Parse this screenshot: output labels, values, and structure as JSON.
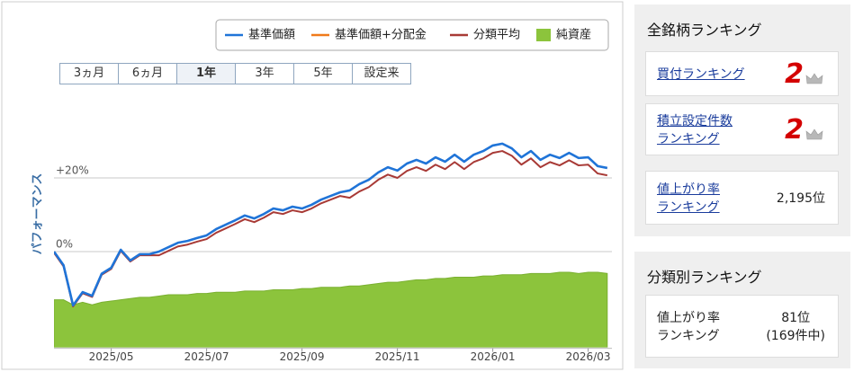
{
  "chart_data": {
    "type": "line",
    "y_axis_label": "パフォーマンス",
    "periods": [
      {
        "label": "3ヵ月"
      },
      {
        "label": "6ヵ月"
      },
      {
        "label": "1年",
        "selected": true
      },
      {
        "label": "3年"
      },
      {
        "label": "5年"
      },
      {
        "label": "設定来"
      }
    ],
    "categories": [
      null,
      null,
      null,
      null,
      null,
      null,
      "2025/05",
      null,
      null,
      null,
      null,
      null,
      null,
      null,
      null,
      null,
      "2025/07",
      null,
      null,
      null,
      null,
      null,
      null,
      null,
      null,
      null,
      "2025/09",
      null,
      null,
      null,
      null,
      null,
      null,
      null,
      null,
      null,
      "2025/11",
      null,
      null,
      null,
      null,
      null,
      null,
      null,
      null,
      null,
      "2026/01",
      null,
      null,
      null,
      null,
      null,
      null,
      null,
      null,
      null,
      "2026/03",
      null,
      null
    ],
    "ylim": [
      -26,
      42
    ],
    "yticks": [
      {
        "value": 20,
        "label": "+20%"
      },
      {
        "value": 0,
        "label": "0%"
      }
    ],
    "y2lim": [
      0,
      100
    ],
    "grid": true,
    "series": [
      {
        "name": "基準価額",
        "color": "#1f74d8",
        "type": "line",
        "values": [
          0,
          -3.7,
          -14.6,
          -11,
          -12,
          -6,
          -4.4,
          0.5,
          -2.4,
          -0.7,
          -0.7,
          0,
          1.2,
          2.4,
          2.9,
          3.7,
          4.4,
          6.1,
          7.3,
          8.5,
          9.8,
          9,
          10.2,
          11.7,
          11.2,
          12.2,
          11.7,
          12.7,
          14.1,
          15.1,
          16.1,
          16.6,
          18.3,
          19.5,
          21.5,
          22.9,
          22,
          23.9,
          24.9,
          23.9,
          25.6,
          24.4,
          26.3,
          24.4,
          26.3,
          27.3,
          28.8,
          29.3,
          28,
          25.6,
          27.3,
          24.9,
          26.3,
          25.4,
          26.8,
          25.4,
          25.6,
          23.2,
          22.7
        ]
      },
      {
        "name": "基準価額+分配金",
        "color": "#f07a1a",
        "type": "line",
        "values": [
          0,
          -3.7,
          -14.6,
          -11,
          -12,
          -6,
          -4.4,
          0.5,
          -2.4,
          -0.7,
          -0.7,
          0,
          1.2,
          2.4,
          2.9,
          3.7,
          4.4,
          6.1,
          7.3,
          8.5,
          9.8,
          9,
          10.2,
          11.7,
          11.2,
          12.2,
          11.7,
          12.7,
          14.1,
          15.1,
          16.1,
          16.6,
          18.3,
          19.5,
          21.5,
          22.9,
          22,
          23.9,
          24.9,
          23.9,
          25.6,
          24.4,
          26.3,
          24.4,
          26.3,
          27.3,
          28.8,
          29.3,
          28,
          25.6,
          27.3,
          24.9,
          26.3,
          25.4,
          26.8,
          25.4,
          25.6,
          23.2,
          22.7
        ]
      },
      {
        "name": "分類平均",
        "color": "#a83a36",
        "type": "line",
        "values": [
          -0.3,
          -4,
          -14.9,
          -11.3,
          -12.3,
          -6.3,
          -4.7,
          0.2,
          -2.7,
          -1,
          -1,
          -1,
          0.2,
          1.4,
          1.9,
          2.7,
          3.4,
          5.1,
          6.3,
          7.5,
          8.8,
          8,
          9.2,
          10.7,
          10.2,
          11.2,
          10.7,
          11.7,
          13.1,
          14.1,
          15.1,
          14.6,
          16.3,
          17.5,
          19.5,
          20.9,
          20,
          21.9,
          22.9,
          21.9,
          23.6,
          22.4,
          24.3,
          22.4,
          24.3,
          25.3,
          26.8,
          27.3,
          26,
          23.6,
          25.3,
          22.9,
          24.3,
          23.4,
          24.8,
          23.4,
          23.6,
          21.2,
          20.7
        ]
      },
      {
        "name": "純資産",
        "color": "#8cc43c",
        "type": "area",
        "axis": "y2",
        "values": [
          19,
          19,
          17,
          18,
          17,
          18,
          18.5,
          19,
          19.5,
          20,
          20,
          20.5,
          21,
          21,
          21,
          21.5,
          21.5,
          22,
          22,
          22,
          22.5,
          22.5,
          22.5,
          23,
          23,
          23,
          23.5,
          23.5,
          24,
          24,
          24,
          24.5,
          24.5,
          25,
          25.5,
          26,
          26,
          26.5,
          27,
          27,
          27.5,
          27.5,
          28,
          28,
          28,
          28.5,
          28.5,
          29,
          29,
          29,
          29.5,
          29.5,
          29.5,
          30,
          30,
          29.5,
          30,
          30,
          29.5
        ]
      }
    ]
  },
  "sidebar": {
    "overall": {
      "title": "全銘柄ランキング",
      "items": [
        {
          "label": [
            "買付ランキング"
          ],
          "rank": "2",
          "crown": true,
          "link": true
        },
        {
          "label": [
            "積立設定件数",
            "ランキング"
          ],
          "rank": "2",
          "crown": true,
          "link": true
        },
        {
          "label": [
            "値上がり率",
            "ランキング"
          ],
          "rank": "2,195位",
          "link": true
        }
      ]
    },
    "category": {
      "title": "分類別ランキング",
      "items": [
        {
          "label": [
            "値上がり率",
            "ランキング"
          ],
          "rank": "81位",
          "note": "(169件中)"
        }
      ]
    }
  }
}
